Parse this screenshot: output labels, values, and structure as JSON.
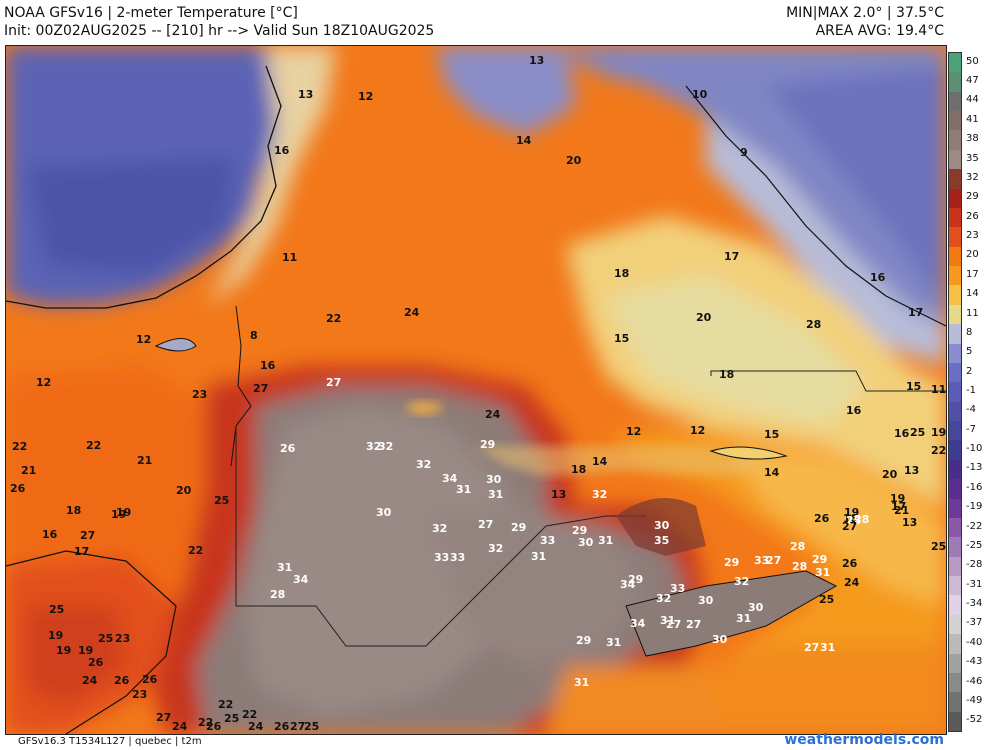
{
  "header": {
    "title": "NOAA GFSv16 | 2-meter Temperature [°C]",
    "init": "Init: 00Z02AUG2025 -- [210] hr --> Valid Sun 18Z10AUG2025",
    "minmax": "MIN|MAX 2.0° | 37.5°C",
    "area_avg": "AREA AVG: 19.4°C"
  },
  "footer": {
    "model_info": "GFSv16.3 T1534L127 | quebec | t2m",
    "brand": "weathermodels.com"
  },
  "colorbar": {
    "ticks": [
      "50",
      "47",
      "44",
      "41",
      "38",
      "35",
      "32",
      "29",
      "26",
      "23",
      "20",
      "17",
      "14",
      "11",
      "8",
      "5",
      "2",
      "-1",
      "-4",
      "-7",
      "-10",
      "-13",
      "-16",
      "-19",
      "-22",
      "-25",
      "-28",
      "-31",
      "-34",
      "-37",
      "-40",
      "-43",
      "-46",
      "-49",
      "-52"
    ],
    "colors": [
      "#4aa37a",
      "#5a8f70",
      "#6e6e6e",
      "#7f6f68",
      "#8e7c76",
      "#9c8a84",
      "#8a3a2a",
      "#a8201a",
      "#c8341a",
      "#e0501c",
      "#f07a14",
      "#f59a1e",
      "#f7c046",
      "#e8d88a",
      "#b8bcd8",
      "#8a8ed0",
      "#6a6ec4",
      "#5c5cb8",
      "#5050a8",
      "#46469c",
      "#3c3c90",
      "#4a2c8a",
      "#5c2c90",
      "#6e3a9a",
      "#8a5aa8",
      "#a07ab6",
      "#b89ac6",
      "#cdb8d6",
      "#e0d2e6",
      "#d2d2d2",
      "#bababa",
      "#a2a2a2",
      "#8a8a8a",
      "#727272",
      "#5a5a5a"
    ]
  },
  "map": {
    "labels": [
      {
        "t": "13",
        "c": "d"
      },
      {
        "t": "13",
        "c": "d"
      },
      {
        "t": "16",
        "c": "d"
      },
      {
        "t": "12",
        "c": "d"
      },
      {
        "t": "11",
        "c": "d"
      },
      {
        "t": "12",
        "c": "d"
      },
      {
        "t": "12",
        "c": "d"
      },
      {
        "t": "8",
        "c": "d"
      },
      {
        "t": "16",
        "c": "d"
      },
      {
        "t": "23",
        "c": "d"
      },
      {
        "t": "20",
        "c": "d"
      },
      {
        "t": "14",
        "c": "d"
      },
      {
        "t": "10",
        "c": "d"
      },
      {
        "t": "9",
        "c": "d"
      },
      {
        "t": "18",
        "c": "d"
      },
      {
        "t": "17",
        "c": "d"
      },
      {
        "t": "16",
        "c": "d"
      },
      {
        "t": "28",
        "c": "d"
      },
      {
        "t": "17",
        "c": "d"
      },
      {
        "t": "20",
        "c": "d"
      },
      {
        "t": "15",
        "c": "d"
      },
      {
        "t": "18",
        "c": "d"
      },
      {
        "t": "15",
        "c": "d"
      },
      {
        "t": "11",
        "c": "d"
      },
      {
        "t": "16",
        "c": "d"
      },
      {
        "t": "13",
        "c": "d"
      },
      {
        "t": "12",
        "c": "d"
      },
      {
        "t": "12",
        "c": "d"
      },
      {
        "t": "15",
        "c": "d"
      },
      {
        "t": "14",
        "c": "d"
      },
      {
        "t": "14",
        "c": "d"
      },
      {
        "t": "18",
        "c": "d"
      },
      {
        "t": "13",
        "c": "d"
      },
      {
        "t": "20",
        "c": "d"
      },
      {
        "t": "16",
        "c": "d"
      },
      {
        "t": "13",
        "c": "d"
      },
      {
        "t": "19",
        "c": "d"
      },
      {
        "t": "18",
        "c": "d"
      },
      {
        "t": "22",
        "c": "d"
      },
      {
        "t": "19",
        "c": "d"
      },
      {
        "t": "21",
        "c": "d"
      },
      {
        "t": "22",
        "c": "d"
      },
      {
        "t": "24",
        "c": "d"
      },
      {
        "t": "27",
        "c": "d"
      },
      {
        "t": "24",
        "c": "d"
      },
      {
        "t": "22",
        "c": "d"
      },
      {
        "t": "21",
        "c": "d"
      },
      {
        "t": "20",
        "c": "d"
      },
      {
        "t": "18",
        "c": "d"
      },
      {
        "t": "19",
        "c": "d"
      },
      {
        "t": "17",
        "c": "d"
      },
      {
        "t": "16",
        "c": "d"
      },
      {
        "t": "27",
        "c": "d"
      },
      {
        "t": "25",
        "c": "d"
      },
      {
        "t": "22",
        "c": "d"
      },
      {
        "t": "27",
        "c": "l"
      },
      {
        "t": "26",
        "c": "l"
      },
      {
        "t": "32",
        "c": "l"
      },
      {
        "t": "32",
        "c": "l"
      },
      {
        "t": "29",
        "c": "l"
      },
      {
        "t": "32",
        "c": "l"
      },
      {
        "t": "34",
        "c": "l"
      },
      {
        "t": "30",
        "c": "l"
      },
      {
        "t": "31",
        "c": "l"
      },
      {
        "t": "31",
        "c": "l"
      },
      {
        "t": "30",
        "c": "l"
      },
      {
        "t": "32",
        "c": "l"
      },
      {
        "t": "27",
        "c": "l"
      },
      {
        "t": "29",
        "c": "l"
      },
      {
        "t": "32",
        "c": "l"
      },
      {
        "t": "33",
        "c": "l"
      },
      {
        "t": "31",
        "c": "l"
      },
      {
        "t": "34",
        "c": "l"
      },
      {
        "t": "28",
        "c": "l"
      },
      {
        "t": "33",
        "c": "l"
      },
      {
        "t": "32",
        "c": "l"
      },
      {
        "t": "31",
        "c": "l"
      },
      {
        "t": "29",
        "c": "l"
      },
      {
        "t": "30",
        "c": "l"
      },
      {
        "t": "31",
        "c": "l"
      },
      {
        "t": "33",
        "c": "l"
      },
      {
        "t": "34",
        "c": "l"
      },
      {
        "t": "32",
        "c": "l"
      },
      {
        "t": "33",
        "c": "l"
      },
      {
        "t": "31",
        "c": "l"
      },
      {
        "t": "30",
        "c": "l"
      },
      {
        "t": "29",
        "c": "l"
      },
      {
        "t": "33",
        "c": "l"
      },
      {
        "t": "32",
        "c": "l"
      },
      {
        "t": "30",
        "c": "l"
      },
      {
        "t": "29",
        "c": "l"
      },
      {
        "t": "31",
        "c": "l"
      },
      {
        "t": "34",
        "c": "l"
      },
      {
        "t": "27",
        "c": "l"
      },
      {
        "t": "30",
        "c": "l"
      },
      {
        "t": "35",
        "c": "l"
      },
      {
        "t": "30",
        "c": "l"
      },
      {
        "t": "29",
        "c": "l"
      },
      {
        "t": "27",
        "c": "l"
      },
      {
        "t": "31",
        "c": "l"
      },
      {
        "t": "28",
        "c": "l"
      },
      {
        "t": "28",
        "c": "l"
      },
      {
        "t": "31",
        "c": "l"
      },
      {
        "t": "27",
        "c": "l"
      },
      {
        "t": "31",
        "c": "l"
      },
      {
        "t": "27",
        "c": "l"
      },
      {
        "t": "31",
        "c": "l"
      },
      {
        "t": "29",
        "c": "l"
      },
      {
        "t": "25",
        "c": "l"
      },
      {
        "t": "28",
        "c": "l"
      },
      {
        "t": "24",
        "c": "d"
      },
      {
        "t": "25",
        "c": "d"
      },
      {
        "t": "26",
        "c": "d"
      },
      {
        "t": "25",
        "c": "d"
      },
      {
        "t": "19",
        "c": "d"
      },
      {
        "t": "19",
        "c": "d"
      },
      {
        "t": "19",
        "c": "d"
      },
      {
        "t": "25",
        "c": "d"
      },
      {
        "t": "26",
        "c": "d"
      },
      {
        "t": "23",
        "c": "d"
      },
      {
        "t": "24",
        "c": "d"
      },
      {
        "t": "26",
        "c": "d"
      },
      {
        "t": "23",
        "c": "d"
      },
      {
        "t": "22",
        "c": "d"
      },
      {
        "t": "22",
        "c": "d"
      },
      {
        "t": "26",
        "c": "d"
      },
      {
        "t": "27",
        "c": "d"
      },
      {
        "t": "24",
        "c": "d"
      },
      {
        "t": "22",
        "c": "d"
      },
      {
        "t": "26",
        "c": "d"
      },
      {
        "t": "25",
        "c": "d"
      },
      {
        "t": "24",
        "c": "d"
      },
      {
        "t": "26",
        "c": "d"
      },
      {
        "t": "27",
        "c": "d"
      },
      {
        "t": "25",
        "c": "d"
      },
      {
        "t": "26",
        "c": "d"
      },
      {
        "t": "25",
        "c": "d"
      },
      {
        "t": "26",
        "c": "d"
      },
      {
        "t": "27",
        "c": "d"
      },
      {
        "t": "25",
        "c": "d"
      },
      {
        "t": "19",
        "c": "d"
      },
      {
        "t": "17",
        "c": "d"
      },
      {
        "t": "22",
        "c": "d"
      },
      {
        "t": "21",
        "c": "d"
      },
      {
        "t": "19",
        "c": "d"
      },
      {
        "t": "15",
        "c": "d"
      },
      {
        "t": "13",
        "c": "d"
      },
      {
        "t": "11",
        "c": "d"
      },
      {
        "t": "14",
        "c": "d"
      },
      {
        "t": "16",
        "c": "d"
      }
    ]
  }
}
